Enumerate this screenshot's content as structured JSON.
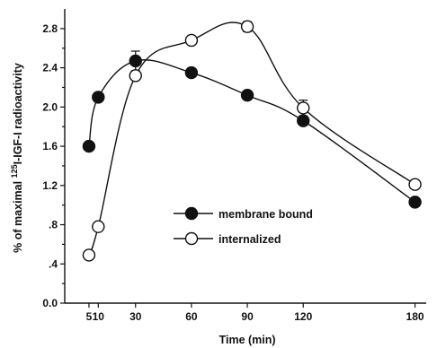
{
  "chart_data": {
    "type": "line",
    "xlabel": "Time (min)",
    "ylabel": "% of maximal ¹²⁵I-IGF-I radioactivity",
    "ylabel_parts": {
      "pre": "% of maximal ",
      "sup": "125",
      "post": "I-IGF-I radioactivity"
    },
    "xlim": [
      -8,
      186
    ],
    "ylim": [
      0,
      3.0
    ],
    "x_ticks": [
      5,
      10,
      30,
      60,
      90,
      120,
      180
    ],
    "x_tick_labels": [
      "5",
      "10",
      "30",
      "60",
      "90",
      "120",
      "180"
    ],
    "y_ticks": [
      0,
      0.4,
      0.8,
      1.2,
      1.6,
      2.0,
      2.4,
      2.8
    ],
    "y_tick_labels": [
      "0.0",
      ".4",
      ".8",
      "1.2",
      "1.6",
      "2.0",
      "2.4",
      "2.8"
    ],
    "legend_position": "center-right",
    "series": [
      {
        "name": "membrane bound",
        "marker": "filled-circle",
        "x": [
          5,
          10,
          30,
          60,
          90,
          120,
          180
        ],
        "y": [
          1.6,
          2.1,
          2.47,
          2.35,
          2.12,
          1.86,
          1.03
        ],
        "error": [
          0,
          0,
          0.1,
          0,
          0,
          0,
          0
        ]
      },
      {
        "name": "internalized",
        "marker": "open-circle",
        "x": [
          5,
          10,
          30,
          60,
          90,
          120,
          180
        ],
        "y": [
          0.49,
          0.78,
          2.32,
          2.68,
          2.82,
          1.99,
          1.21
        ],
        "error": [
          0,
          0,
          0,
          0,
          0.05,
          0.08,
          0
        ]
      }
    ]
  }
}
